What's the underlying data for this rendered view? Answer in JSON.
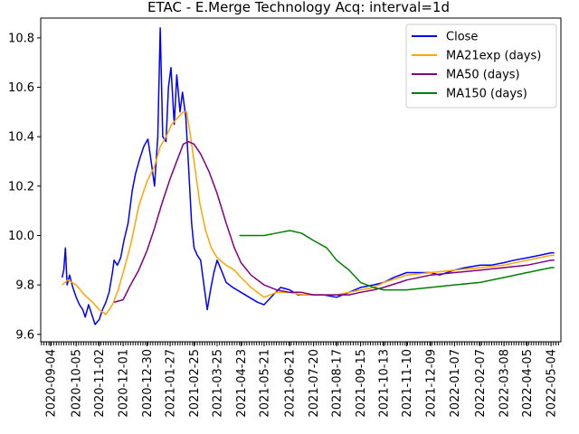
{
  "chart_data": {
    "type": "line",
    "title": "ETAC - E.Merge Technology Acq: interval=1d",
    "xlabel": "",
    "ylabel": "",
    "xlim": [
      "2020-08-23",
      "2022-05-16"
    ],
    "ylim": [
      9.57,
      10.88
    ],
    "legend": {
      "placement": "top-right"
    },
    "grid": false,
    "x_ticks": [
      "2020-09-04",
      "2020-10-05",
      "2020-11-02",
      "2020-12-01",
      "2020-12-30",
      "2021-01-27",
      "2021-02-25",
      "2021-03-25",
      "2021-04-23",
      "2021-05-21",
      "2021-06-21",
      "2021-07-20",
      "2021-08-17",
      "2021-09-15",
      "2021-10-13",
      "2021-11-10",
      "2021-12-09",
      "2022-01-07",
      "2022-02-07",
      "2022-03-08",
      "2022-04-05",
      "2022-05-04"
    ],
    "y_ticks": [
      9.6,
      9.8,
      10.0,
      10.2,
      10.4,
      10.6,
      10.8
    ],
    "y_tick_labels": [
      "9.6",
      "9.8",
      "10.0",
      "10.2",
      "10.4",
      "10.6",
      "10.8"
    ],
    "series": [
      {
        "name": "Close",
        "color": "#0000ff",
        "points": [
          [
            "2020-09-18",
            9.83
          ],
          [
            "2020-09-20",
            9.86
          ],
          [
            "2020-09-22",
            9.95
          ],
          [
            "2020-09-24",
            9.8
          ],
          [
            "2020-09-27",
            9.84
          ],
          [
            "2020-10-01",
            9.79
          ],
          [
            "2020-10-05",
            9.75
          ],
          [
            "2020-10-09",
            9.72
          ],
          [
            "2020-10-13",
            9.7
          ],
          [
            "2020-10-16",
            9.67
          ],
          [
            "2020-10-20",
            9.72
          ],
          [
            "2020-10-24",
            9.68
          ],
          [
            "2020-10-28",
            9.64
          ],
          [
            "2020-11-02",
            9.66
          ],
          [
            "2020-11-06",
            9.7
          ],
          [
            "2020-11-10",
            9.73
          ],
          [
            "2020-11-14",
            9.77
          ],
          [
            "2020-11-18",
            9.85
          ],
          [
            "2020-11-20",
            9.9
          ],
          [
            "2020-11-24",
            9.88
          ],
          [
            "2020-11-28",
            9.91
          ],
          [
            "2020-12-02",
            9.98
          ],
          [
            "2020-12-07",
            10.05
          ],
          [
            "2020-12-12",
            10.18
          ],
          [
            "2020-12-16",
            10.25
          ],
          [
            "2020-12-21",
            10.31
          ],
          [
            "2020-12-26",
            10.36
          ],
          [
            "2020-12-31",
            10.39
          ],
          [
            "2021-01-04",
            10.3
          ],
          [
            "2021-01-08",
            10.2
          ],
          [
            "2021-01-12",
            10.4
          ],
          [
            "2021-01-15",
            10.84
          ],
          [
            "2021-01-18",
            10.4
          ],
          [
            "2021-01-22",
            10.38
          ],
          [
            "2021-01-25",
            10.6
          ],
          [
            "2021-01-28",
            10.68
          ],
          [
            "2021-02-01",
            10.45
          ],
          [
            "2021-02-04",
            10.65
          ],
          [
            "2021-02-08",
            10.5
          ],
          [
            "2021-02-11",
            10.58
          ],
          [
            "2021-02-15",
            10.48
          ],
          [
            "2021-02-18",
            10.3
          ],
          [
            "2021-02-22",
            10.05
          ],
          [
            "2021-02-25",
            9.95
          ],
          [
            "2021-03-01",
            9.92
          ],
          [
            "2021-03-05",
            9.9
          ],
          [
            "2021-03-09",
            9.8
          ],
          [
            "2021-03-13",
            9.7
          ],
          [
            "2021-03-17",
            9.78
          ],
          [
            "2021-03-21",
            9.85
          ],
          [
            "2021-03-25",
            9.9
          ],
          [
            "2021-03-30",
            9.86
          ],
          [
            "2021-04-05",
            9.81
          ],
          [
            "2021-04-13",
            9.79
          ],
          [
            "2021-04-23",
            9.77
          ],
          [
            "2021-05-03",
            9.75
          ],
          [
            "2021-05-13",
            9.73
          ],
          [
            "2021-05-21",
            9.72
          ],
          [
            "2021-06-01",
            9.76
          ],
          [
            "2021-06-10",
            9.79
          ],
          [
            "2021-06-21",
            9.78
          ],
          [
            "2021-07-01",
            9.76
          ],
          [
            "2021-07-10",
            9.76
          ],
          [
            "2021-07-20",
            9.76
          ],
          [
            "2021-08-01",
            9.76
          ],
          [
            "2021-08-17",
            9.75
          ],
          [
            "2021-09-01",
            9.77
          ],
          [
            "2021-09-15",
            9.79
          ],
          [
            "2021-10-01",
            9.8
          ],
          [
            "2021-10-13",
            9.81
          ],
          [
            "2021-10-25",
            9.83
          ],
          [
            "2021-11-10",
            9.85
          ],
          [
            "2021-11-25",
            9.85
          ],
          [
            "2021-12-09",
            9.85
          ],
          [
            "2021-12-20",
            9.84
          ],
          [
            "2022-01-07",
            9.86
          ],
          [
            "2022-01-20",
            9.87
          ],
          [
            "2022-02-07",
            9.88
          ],
          [
            "2022-02-20",
            9.88
          ],
          [
            "2022-03-08",
            9.89
          ],
          [
            "2022-03-20",
            9.9
          ],
          [
            "2022-04-05",
            9.91
          ],
          [
            "2022-04-20",
            9.92
          ],
          [
            "2022-05-04",
            9.93
          ],
          [
            "2022-05-08",
            9.93
          ]
        ]
      },
      {
        "name": "MA21exp (days)",
        "color": "#ffa500",
        "points": [
          [
            "2020-09-18",
            9.8
          ],
          [
            "2020-09-25",
            9.82
          ],
          [
            "2020-10-05",
            9.8
          ],
          [
            "2020-10-15",
            9.76
          ],
          [
            "2020-10-25",
            9.73
          ],
          [
            "2020-11-02",
            9.7
          ],
          [
            "2020-11-10",
            9.68
          ],
          [
            "2020-11-18",
            9.72
          ],
          [
            "2020-11-25",
            9.78
          ],
          [
            "2020-12-01",
            9.85
          ],
          [
            "2020-12-10",
            9.96
          ],
          [
            "2020-12-20",
            10.12
          ],
          [
            "2020-12-30",
            10.22
          ],
          [
            "2021-01-08",
            10.28
          ],
          [
            "2021-01-15",
            10.36
          ],
          [
            "2021-01-22",
            10.4
          ],
          [
            "2021-01-29",
            10.45
          ],
          [
            "2021-02-06",
            10.48
          ],
          [
            "2021-02-12",
            10.5
          ],
          [
            "2021-02-16",
            10.5
          ],
          [
            "2021-02-20",
            10.42
          ],
          [
            "2021-02-25",
            10.3
          ],
          [
            "2021-03-04",
            10.13
          ],
          [
            "2021-03-11",
            10.02
          ],
          [
            "2021-03-18",
            9.95
          ],
          [
            "2021-03-25",
            9.91
          ],
          [
            "2021-04-05",
            9.88
          ],
          [
            "2021-04-15",
            9.86
          ],
          [
            "2021-04-23",
            9.83
          ],
          [
            "2021-05-05",
            9.79
          ],
          [
            "2021-05-21",
            9.75
          ],
          [
            "2021-06-05",
            9.77
          ],
          [
            "2021-06-21",
            9.77
          ],
          [
            "2021-07-05",
            9.76
          ],
          [
            "2021-07-20",
            9.76
          ],
          [
            "2021-08-05",
            9.76
          ],
          [
            "2021-08-17",
            9.76
          ],
          [
            "2021-09-01",
            9.77
          ],
          [
            "2021-09-15",
            9.78
          ],
          [
            "2021-10-01",
            9.79
          ],
          [
            "2021-10-13",
            9.81
          ],
          [
            "2021-11-01",
            9.83
          ],
          [
            "2021-11-10",
            9.84
          ],
          [
            "2021-12-09",
            9.85
          ],
          [
            "2022-01-07",
            9.86
          ],
          [
            "2022-02-07",
            9.87
          ],
          [
            "2022-03-08",
            9.88
          ],
          [
            "2022-04-05",
            9.9
          ],
          [
            "2022-05-04",
            9.92
          ],
          [
            "2022-05-08",
            9.92
          ]
        ]
      },
      {
        "name": "MA50 (days)",
        "color": "#800080",
        "points": [
          [
            "2020-11-20",
            9.73
          ],
          [
            "2020-12-01",
            9.74
          ],
          [
            "2020-12-10",
            9.8
          ],
          [
            "2020-12-20",
            9.86
          ],
          [
            "2020-12-30",
            9.94
          ],
          [
            "2021-01-08",
            10.03
          ],
          [
            "2021-01-17",
            10.13
          ],
          [
            "2021-01-27",
            10.23
          ],
          [
            "2021-02-05",
            10.31
          ],
          [
            "2021-02-12",
            10.37
          ],
          [
            "2021-02-18",
            10.38
          ],
          [
            "2021-02-25",
            10.37
          ],
          [
            "2021-03-05",
            10.33
          ],
          [
            "2021-03-15",
            10.26
          ],
          [
            "2021-03-25",
            10.17
          ],
          [
            "2021-04-05",
            10.05
          ],
          [
            "2021-04-15",
            9.95
          ],
          [
            "2021-04-23",
            9.89
          ],
          [
            "2021-05-05",
            9.84
          ],
          [
            "2021-05-21",
            9.8
          ],
          [
            "2021-06-05",
            9.78
          ],
          [
            "2021-06-21",
            9.77
          ],
          [
            "2021-07-05",
            9.77
          ],
          [
            "2021-07-20",
            9.76
          ],
          [
            "2021-08-05",
            9.76
          ],
          [
            "2021-08-17",
            9.76
          ],
          [
            "2021-09-01",
            9.76
          ],
          [
            "2021-09-15",
            9.77
          ],
          [
            "2021-10-01",
            9.78
          ],
          [
            "2021-10-13",
            9.79
          ],
          [
            "2021-11-01",
            9.81
          ],
          [
            "2021-11-10",
            9.82
          ],
          [
            "2021-12-09",
            9.84
          ],
          [
            "2022-01-07",
            9.85
          ],
          [
            "2022-02-07",
            9.86
          ],
          [
            "2022-03-08",
            9.87
          ],
          [
            "2022-04-05",
            9.88
          ],
          [
            "2022-05-04",
            9.9
          ],
          [
            "2022-05-08",
            9.9
          ]
        ]
      },
      {
        "name": "MA150 (days)",
        "color": "#008000",
        "points": [
          [
            "2021-04-21",
            10.0
          ],
          [
            "2021-05-05",
            10.0
          ],
          [
            "2021-05-21",
            10.0
          ],
          [
            "2021-06-05",
            10.01
          ],
          [
            "2021-06-21",
            10.02
          ],
          [
            "2021-07-05",
            10.01
          ],
          [
            "2021-07-20",
            9.98
          ],
          [
            "2021-08-05",
            9.95
          ],
          [
            "2021-08-17",
            9.9
          ],
          [
            "2021-09-01",
            9.86
          ],
          [
            "2021-09-15",
            9.81
          ],
          [
            "2021-10-01",
            9.79
          ],
          [
            "2021-10-13",
            9.78
          ],
          [
            "2021-11-01",
            9.78
          ],
          [
            "2021-11-10",
            9.78
          ],
          [
            "2021-12-09",
            9.79
          ],
          [
            "2022-01-07",
            9.8
          ],
          [
            "2022-02-07",
            9.81
          ],
          [
            "2022-03-08",
            9.83
          ],
          [
            "2022-04-05",
            9.85
          ],
          [
            "2022-05-04",
            9.87
          ],
          [
            "2022-05-08",
            9.87
          ]
        ]
      }
    ]
  }
}
